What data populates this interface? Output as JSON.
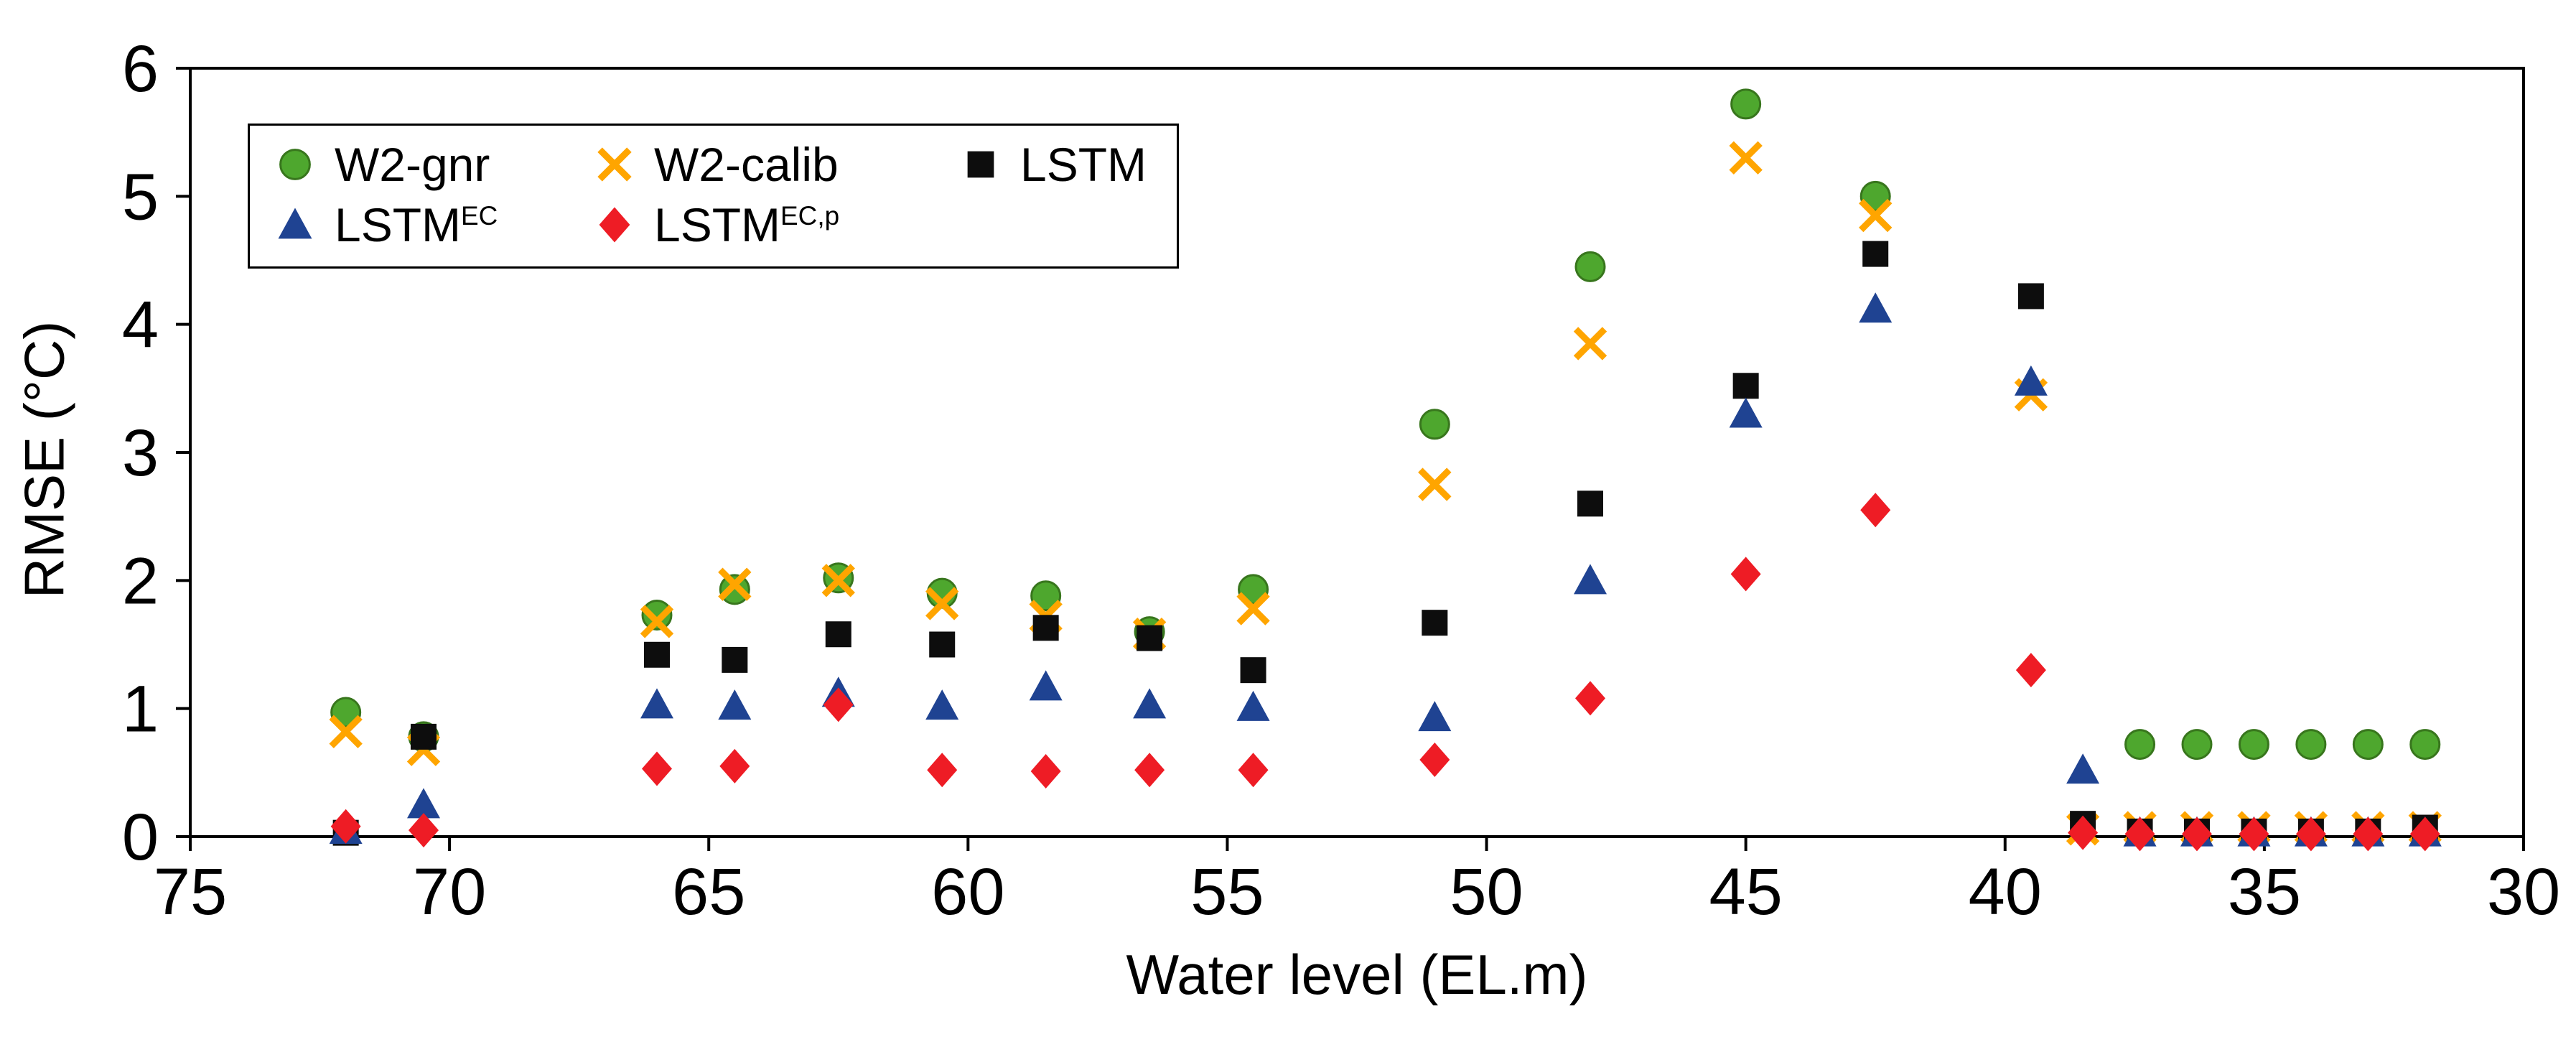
{
  "figure": {
    "background": "#ffffff",
    "axis_color": "#000000"
  },
  "chart_data": {
    "type": "scatter",
    "title": "",
    "xlabel": "Water level (EL.m)",
    "ylabel": "RMSE (°C)",
    "xlim": [
      75,
      30
    ],
    "ylim": [
      0,
      6
    ],
    "x_reversed": true,
    "grid": false,
    "x_ticks": [
      75,
      70,
      65,
      60,
      55,
      50,
      45,
      40,
      35,
      30
    ],
    "y_ticks": [
      0,
      1,
      2,
      3,
      4,
      5,
      6
    ],
    "legend_position": "top-left",
    "legend_rows": [
      [
        0,
        1,
        2
      ],
      [
        3,
        4
      ]
    ],
    "series": [
      {
        "id": "w2-gnr",
        "label": {
          "base": "W2-gnr",
          "sup": ""
        },
        "marker": "circle",
        "color": "#4ea72e",
        "edge": "#38761d",
        "points": [
          [
            72,
            0.97
          ],
          [
            70.5,
            0.78
          ],
          [
            66,
            1.73
          ],
          [
            64.5,
            1.93
          ],
          [
            62.5,
            2.02
          ],
          [
            60.5,
            1.9
          ],
          [
            58.5,
            1.88
          ],
          [
            56.5,
            1.6
          ],
          [
            54.5,
            1.93
          ],
          [
            51,
            3.22
          ],
          [
            48,
            4.45
          ],
          [
            45,
            5.72
          ],
          [
            42.5,
            5.0
          ],
          [
            37.4,
            0.72
          ],
          [
            36.3,
            0.72
          ],
          [
            35.2,
            0.72
          ],
          [
            34.1,
            0.72
          ],
          [
            33,
            0.72
          ],
          [
            31.9,
            0.72
          ]
        ]
      },
      {
        "id": "w2-calib",
        "label": {
          "base": "W2-calib",
          "sup": ""
        },
        "marker": "x",
        "color": "#ffa500",
        "points": [
          [
            72,
            0.82
          ],
          [
            70.5,
            0.68
          ],
          [
            66,
            1.68
          ],
          [
            64.5,
            1.97
          ],
          [
            62.5,
            2.0
          ],
          [
            60.5,
            1.82
          ],
          [
            58.5,
            1.72
          ],
          [
            56.5,
            1.58
          ],
          [
            54.5,
            1.78
          ],
          [
            51,
            2.75
          ],
          [
            48,
            3.85
          ],
          [
            45,
            5.3
          ],
          [
            42.5,
            4.85
          ],
          [
            39.5,
            3.45
          ],
          [
            38.5,
            0.06
          ],
          [
            37.4,
            0.07
          ],
          [
            36.3,
            0.07
          ],
          [
            35.2,
            0.07
          ],
          [
            34.1,
            0.07
          ],
          [
            33,
            0.07
          ],
          [
            31.9,
            0.07
          ]
        ]
      },
      {
        "id": "lstm",
        "label": {
          "base": "LSTM",
          "sup": ""
        },
        "marker": "square",
        "color": "#0d0d0d",
        "points": [
          [
            72,
            0.03
          ],
          [
            70.5,
            0.78
          ],
          [
            66,
            1.42
          ],
          [
            64.5,
            1.38
          ],
          [
            62.5,
            1.58
          ],
          [
            60.5,
            1.5
          ],
          [
            58.5,
            1.63
          ],
          [
            56.5,
            1.55
          ],
          [
            54.5,
            1.3
          ],
          [
            51,
            1.67
          ],
          [
            48,
            2.6
          ],
          [
            45,
            3.52
          ],
          [
            42.5,
            4.55
          ],
          [
            39.5,
            4.22
          ],
          [
            38.5,
            0.1
          ],
          [
            37.4,
            0.04
          ],
          [
            36.3,
            0.04
          ],
          [
            35.2,
            0.04
          ],
          [
            34.1,
            0.04
          ],
          [
            33,
            0.04
          ],
          [
            31.9,
            0.07
          ]
        ]
      },
      {
        "id": "lstm-ec",
        "label": {
          "base": "LSTM",
          "sup": "EC"
        },
        "marker": "triangle",
        "color": "#1f4392",
        "points": [
          [
            72,
            0.05
          ],
          [
            70.5,
            0.25
          ],
          [
            66,
            1.03
          ],
          [
            64.5,
            1.02
          ],
          [
            62.5,
            1.12
          ],
          [
            60.5,
            1.02
          ],
          [
            58.5,
            1.17
          ],
          [
            56.5,
            1.03
          ],
          [
            54.5,
            1.01
          ],
          [
            51,
            0.93
          ],
          [
            48,
            2.0
          ],
          [
            45,
            3.3
          ],
          [
            42.5,
            4.12
          ],
          [
            39.5,
            3.55
          ],
          [
            38.5,
            0.52
          ],
          [
            37.4,
            0.03
          ],
          [
            36.3,
            0.03
          ],
          [
            35.2,
            0.03
          ],
          [
            34.1,
            0.03
          ],
          [
            33,
            0.03
          ],
          [
            31.9,
            0.03
          ]
        ]
      },
      {
        "id": "lstm-ecp",
        "label": {
          "base": "LSTM",
          "sup": "EC,p"
        },
        "marker": "diamond",
        "color": "#ee1c25",
        "points": [
          [
            72,
            0.08
          ],
          [
            70.5,
            0.05
          ],
          [
            66,
            0.53
          ],
          [
            64.5,
            0.55
          ],
          [
            62.5,
            1.03
          ],
          [
            60.5,
            0.52
          ],
          [
            58.5,
            0.51
          ],
          [
            56.5,
            0.52
          ],
          [
            54.5,
            0.52
          ],
          [
            51,
            0.6
          ],
          [
            48,
            1.08
          ],
          [
            45,
            2.05
          ],
          [
            42.5,
            2.55
          ],
          [
            39.5,
            1.3
          ],
          [
            38.5,
            0.03
          ],
          [
            37.4,
            0.02
          ],
          [
            36.3,
            0.02
          ],
          [
            35.2,
            0.02
          ],
          [
            34.1,
            0.02
          ],
          [
            33,
            0.02
          ],
          [
            31.9,
            0.02
          ]
        ]
      }
    ]
  }
}
